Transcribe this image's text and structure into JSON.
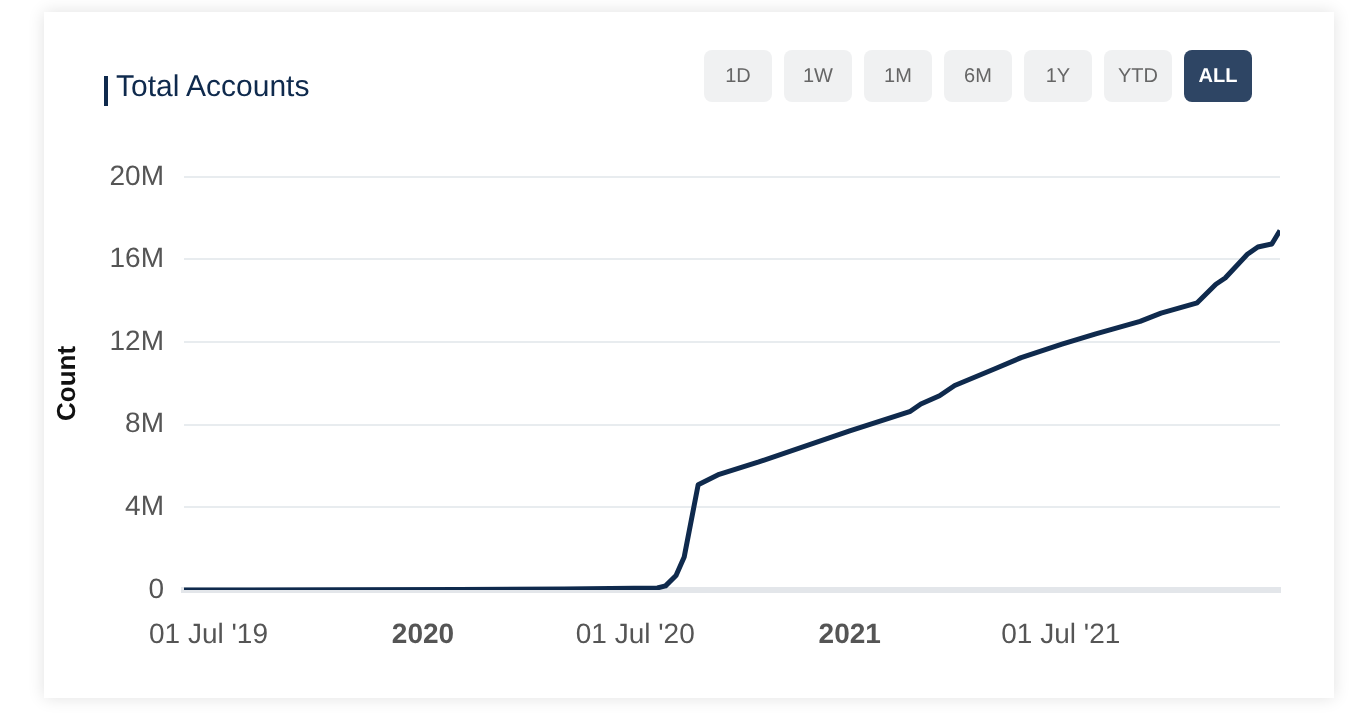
{
  "chart_data": {
    "type": "line",
    "title": "Total Accounts",
    "ylabel": "Count",
    "annotations": [
      "1D",
      "1W",
      "1M",
      "6M",
      "1Y",
      "YTD",
      "ALL"
    ],
    "x": [
      "2019-06-10",
      "2020-02-01",
      "2020-05-01",
      "2020-07-20",
      "2020-07-27",
      "2020-08-05",
      "2020-08-12",
      "2020-08-24",
      "2020-09-11",
      "2020-10-15",
      "2021-01-01",
      "2021-02-22",
      "2021-03-03",
      "2021-03-19",
      "2021-04-01",
      "2021-05-05",
      "2021-05-28",
      "2021-07-02",
      "2021-07-31",
      "2021-09-07",
      "2021-09-25",
      "2021-10-26",
      "2021-11-11",
      "2021-11-19",
      "2021-12-08",
      "2021-12-17",
      "2021-12-29",
      "2022-01-05"
    ],
    "series": [
      {
        "color": "#0f2a4d",
        "values": [
          0,
          0.02,
          0.05,
          0.1,
          0.2,
          0.7,
          1.6,
          5.1,
          5.6,
          6.2,
          7.7,
          8.65,
          9.0,
          9.4,
          9.9,
          10.7,
          11.25,
          11.9,
          12.4,
          13.0,
          13.4,
          13.9,
          14.8,
          15.1,
          16.25,
          16.6,
          16.75,
          17.4
        ]
      }
    ],
    "xlim": [
      "2019-06-10",
      "2022-01-05"
    ],
    "xticks": [
      {
        "value": "2019-07-01",
        "label": "01 Jul '19"
      },
      {
        "value": "2020-01-01",
        "label": "2020"
      },
      {
        "value": "2020-07-01",
        "label": "01 Jul '20"
      },
      {
        "value": "2021-01-01",
        "label": "2021"
      },
      {
        "value": "2021-07-01",
        "label": "01 Jul '21"
      }
    ],
    "ylim": [
      0,
      20
    ],
    "yticks": [
      {
        "value": 0,
        "label": "0"
      },
      {
        "value": 4,
        "label": "4M"
      },
      {
        "value": 8,
        "label": "8M"
      },
      {
        "value": 12,
        "label": "12M"
      },
      {
        "value": 16,
        "label": "16M"
      },
      {
        "value": 20,
        "label": "20M"
      }
    ],
    "grid": "y",
    "legend": false,
    "marker": "none",
    "line_style": "solid"
  }
}
